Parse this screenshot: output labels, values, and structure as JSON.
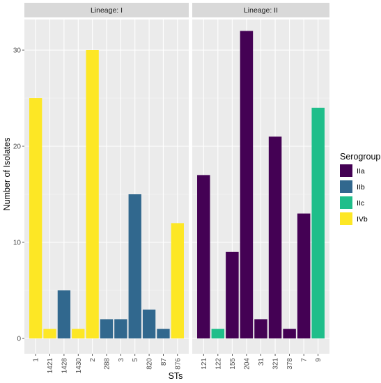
{
  "chart_data": {
    "type": "bar",
    "xlabel": "STs",
    "ylabel": "Number of Isolates",
    "ylim": [
      0,
      34
    ],
    "yticks": [
      0,
      10,
      20,
      30
    ],
    "grid": true,
    "legend": {
      "title": "Serogroup",
      "placement": "right",
      "entries": [
        {
          "name": "IIa",
          "color": "#440154"
        },
        {
          "name": "IIb",
          "color": "#31688e"
        },
        {
          "name": "IIc",
          "color": "#1fbe8a"
        },
        {
          "name": "IVb",
          "color": "#fde725"
        }
      ]
    },
    "facets": [
      {
        "label": "Lineage: I",
        "bars": [
          {
            "st": "1",
            "value": 25,
            "serogroup": "IVb"
          },
          {
            "st": "1421",
            "value": 1,
            "serogroup": "IVb"
          },
          {
            "st": "1428",
            "value": 5,
            "serogroup": "IIb"
          },
          {
            "st": "1430",
            "value": 1,
            "serogroup": "IVb"
          },
          {
            "st": "2",
            "value": 30,
            "serogroup": "IVb"
          },
          {
            "st": "288",
            "value": 2,
            "serogroup": "IIb"
          },
          {
            "st": "3",
            "value": 2,
            "serogroup": "IIb"
          },
          {
            "st": "5",
            "value": 15,
            "serogroup": "IIb"
          },
          {
            "st": "820",
            "value": 3,
            "serogroup": "IIb"
          },
          {
            "st": "87",
            "value": 1,
            "serogroup": "IIb"
          },
          {
            "st": "876",
            "value": 12,
            "serogroup": "IVb"
          }
        ]
      },
      {
        "label": "Lineage: II",
        "bars": [
          {
            "st": "121",
            "value": 17,
            "serogroup": "IIa"
          },
          {
            "st": "122",
            "value": 1,
            "serogroup": "IIc"
          },
          {
            "st": "155",
            "value": 9,
            "serogroup": "IIa"
          },
          {
            "st": "204",
            "value": 32,
            "serogroup": "IIa"
          },
          {
            "st": "31",
            "value": 2,
            "serogroup": "IIa"
          },
          {
            "st": "321",
            "value": 21,
            "serogroup": "IIa"
          },
          {
            "st": "378",
            "value": 1,
            "serogroup": "IIa"
          },
          {
            "st": "7",
            "value": 13,
            "serogroup": "IIa"
          },
          {
            "st": "9",
            "value": 24,
            "serogroup": "IIc"
          }
        ]
      }
    ]
  }
}
